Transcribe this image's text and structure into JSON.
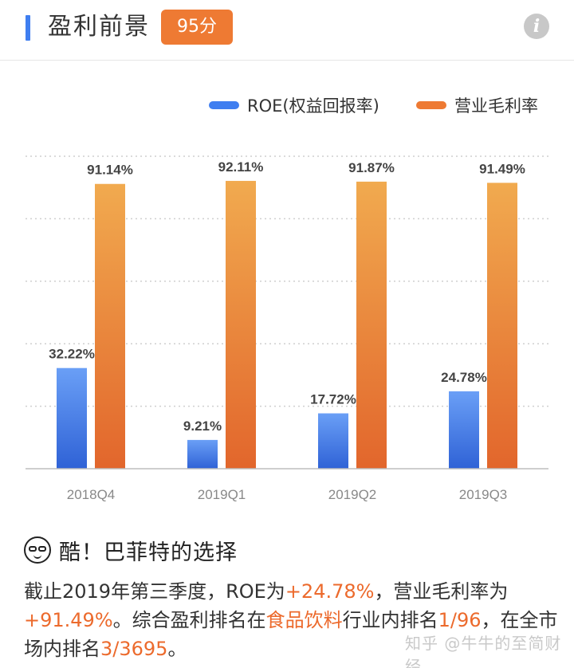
{
  "header": {
    "title": "盈利前景",
    "score": "95分",
    "info_icon": "info-icon"
  },
  "chart_data": {
    "type": "bar",
    "title": "",
    "categories": [
      "2018Q4",
      "2019Q1",
      "2019Q2",
      "2019Q3"
    ],
    "series": [
      {
        "name": "ROE(权益回报率)",
        "values": [
          32.22,
          9.21,
          17.72,
          24.78
        ],
        "color": "#3f7ef0"
      },
      {
        "name": "营业毛利率",
        "values": [
          91.14,
          92.11,
          91.87,
          91.49
        ],
        "color": "#ee7a33"
      }
    ],
    "value_labels": [
      [
        "32.22%",
        "9.21%",
        "17.72%",
        "24.78%"
      ],
      [
        "91.14%",
        "92.11%",
        "91.87%",
        "91.49%"
      ]
    ],
    "ylim": [
      0,
      100
    ],
    "grid": true,
    "legend": "top-right"
  },
  "summary": {
    "title": "酷！巴菲特的选择",
    "icon": "cool-face-icon",
    "p1": "截止2019年第三季度，ROE为",
    "roe": "+24.78%",
    "p2": "，营业毛利率为",
    "margin": "+91.49%",
    "p3": "。综合盈利排名在",
    "industry": "食品饮料",
    "p4": "行业内排名",
    "industry_rank": "1/96",
    "p5": "，在全市场内排名",
    "market_rank": "3/3695",
    "p6": "。"
  },
  "watermark": "知乎 @牛牛的至简财经"
}
